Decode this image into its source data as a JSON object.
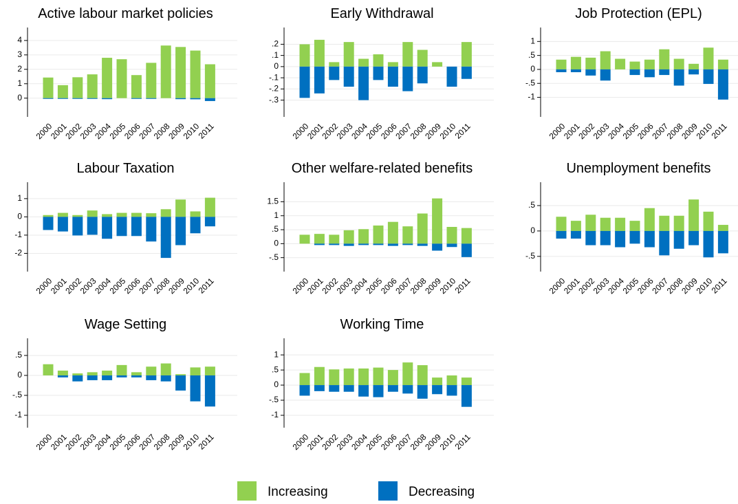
{
  "chart_data": [
    {
      "type": "bar",
      "title": "Active labour market policies",
      "categories": [
        "2000",
        "2001",
        "2002",
        "2003",
        "2004",
        "2005",
        "2006",
        "2007",
        "2008",
        "2009",
        "2010",
        "2011"
      ],
      "series": [
        {
          "name": "Increasing",
          "color": "#92d050",
          "values": [
            1.43,
            0.9,
            1.45,
            1.65,
            2.8,
            2.7,
            1.6,
            2.45,
            3.65,
            3.55,
            3.3,
            2.35
          ]
        },
        {
          "name": "Decreasing",
          "color": "#0070c0",
          "values": [
            -0.05,
            -0.05,
            -0.05,
            -0.05,
            -0.07,
            0,
            -0.05,
            -0.05,
            0,
            -0.07,
            -0.08,
            -0.2
          ]
        }
      ],
      "ylim": [
        -1.3,
        4.9
      ],
      "yticks": [
        0,
        1,
        2,
        3,
        4
      ],
      "grid": true
    },
    {
      "type": "bar",
      "title": "Early Withdrawal",
      "categories": [
        "2000",
        "2001",
        "2002",
        "2003",
        "2004",
        "2005",
        "2006",
        "2007",
        "2008",
        "2009",
        "2010",
        "2011"
      ],
      "series": [
        {
          "name": "Increasing",
          "color": "#92d050",
          "values": [
            0.2,
            0.24,
            0.04,
            0.22,
            0.07,
            0.11,
            0.04,
            0.22,
            0.15,
            0.04,
            0,
            0.22
          ]
        },
        {
          "name": "Decreasing",
          "color": "#0070c0",
          "values": [
            -0.28,
            -0.24,
            -0.12,
            -0.18,
            -0.3,
            -0.12,
            -0.18,
            -0.22,
            -0.15,
            0,
            -0.18,
            -0.11
          ]
        }
      ],
      "ylim": [
        -0.45,
        0.35
      ],
      "yticks": [
        {
          "value": 0.2,
          "label": ".2"
        },
        {
          "value": 0.1,
          "label": ".1"
        },
        0,
        {
          "value": -0.1,
          "label": "-.1"
        },
        {
          "value": -0.2,
          "label": "-.2"
        },
        {
          "value": -0.3,
          "label": "-.3"
        }
      ],
      "grid": true
    },
    {
      "type": "bar",
      "title": "Job Protection (EPL)",
      "categories": [
        "2000",
        "2001",
        "2002",
        "2003",
        "2004",
        "2005",
        "2006",
        "2007",
        "2008",
        "2009",
        "2010",
        "2011"
      ],
      "series": [
        {
          "name": "Increasing",
          "color": "#92d050",
          "values": [
            0.35,
            0.45,
            0.42,
            0.65,
            0.38,
            0.28,
            0.35,
            0.72,
            0.38,
            0.2,
            0.78,
            0.35
          ]
        },
        {
          "name": "Decreasing",
          "color": "#0070c0",
          "values": [
            -0.1,
            -0.1,
            -0.22,
            -0.4,
            0,
            -0.2,
            -0.28,
            -0.2,
            -0.58,
            -0.18,
            -0.52,
            -1.08
          ]
        }
      ],
      "ylim": [
        -1.7,
        1.5
      ],
      "yticks": [
        1,
        {
          "value": 0.5,
          "label": ".5"
        },
        0,
        {
          "value": -0.5,
          "label": "-.5"
        },
        -1
      ],
      "grid": true
    },
    {
      "type": "bar",
      "title": "Labour Taxation",
      "categories": [
        "2000",
        "2001",
        "2002",
        "2003",
        "2004",
        "2005",
        "2006",
        "2007",
        "2008",
        "2009",
        "2010",
        "2011"
      ],
      "series": [
        {
          "name": "Increasing",
          "color": "#92d050",
          "values": [
            0.1,
            0.22,
            0.1,
            0.35,
            0.15,
            0.22,
            0.22,
            0.2,
            0.42,
            0.95,
            0.3,
            1.05
          ]
        },
        {
          "name": "Decreasing",
          "color": "#0070c0",
          "values": [
            -0.72,
            -0.8,
            -1.02,
            -0.98,
            -1.2,
            -1.05,
            -1.05,
            -1.35,
            -2.25,
            -1.55,
            -0.9,
            -0.52
          ]
        }
      ],
      "ylim": [
        -3.0,
        1.9
      ],
      "yticks": [
        1,
        0,
        -1,
        -2
      ],
      "grid": true
    },
    {
      "type": "bar",
      "title": "Other welfare-related benefits",
      "categories": [
        "2000",
        "2001",
        "2002",
        "2003",
        "2004",
        "2005",
        "2006",
        "2007",
        "2008",
        "2009",
        "2010",
        "2011"
      ],
      "series": [
        {
          "name": "Increasing",
          "color": "#92d050",
          "values": [
            0.32,
            0.35,
            0.32,
            0.48,
            0.52,
            0.65,
            0.78,
            0.62,
            1.08,
            1.62,
            0.6,
            0.56
          ]
        },
        {
          "name": "Decreasing",
          "color": "#0070c0",
          "values": [
            0,
            -0.05,
            -0.05,
            -0.08,
            -0.05,
            -0.05,
            -0.08,
            -0.05,
            -0.08,
            -0.25,
            -0.12,
            -0.48
          ]
        }
      ],
      "ylim": [
        -1.0,
        2.2
      ],
      "yticks": [
        1.5,
        1,
        {
          "value": 0.5,
          "label": ".5"
        },
        0,
        {
          "value": -0.5,
          "label": "-.5"
        }
      ],
      "grid": true
    },
    {
      "type": "bar",
      "title": "Unemployment benefits",
      "categories": [
        "2000",
        "2001",
        "2002",
        "2003",
        "2004",
        "2005",
        "2006",
        "2007",
        "2008",
        "2009",
        "2010",
        "2011"
      ],
      "series": [
        {
          "name": "Increasing",
          "color": "#92d050",
          "values": [
            0.28,
            0.2,
            0.32,
            0.26,
            0.26,
            0.2,
            0.45,
            0.3,
            0.3,
            0.62,
            0.38,
            0.12
          ]
        },
        {
          "name": "Decreasing",
          "color": "#0070c0",
          "values": [
            -0.15,
            -0.15,
            -0.28,
            -0.28,
            -0.32,
            -0.25,
            -0.32,
            -0.48,
            -0.35,
            -0.28,
            -0.52,
            -0.44
          ]
        }
      ],
      "ylim": [
        -0.8,
        0.96
      ],
      "yticks": [
        {
          "value": 0.5,
          "label": ".5"
        },
        0,
        {
          "value": -0.5,
          "label": "-.5"
        }
      ],
      "grid": true
    },
    {
      "type": "bar",
      "title": "Wage Setting",
      "categories": [
        "2000",
        "2001",
        "2002",
        "2003",
        "2004",
        "2005",
        "2006",
        "2007",
        "2008",
        "2009",
        "2010",
        "2011"
      ],
      "series": [
        {
          "name": "Increasing",
          "color": "#92d050",
          "values": [
            0.28,
            0.12,
            0.05,
            0.08,
            0.12,
            0.26,
            0.08,
            0.22,
            0.3,
            0.03,
            0.2,
            0.22
          ]
        },
        {
          "name": "Decreasing",
          "color": "#0070c0",
          "values": [
            0,
            -0.05,
            -0.15,
            -0.12,
            -0.12,
            -0.05,
            -0.05,
            -0.12,
            -0.15,
            -0.38,
            -0.65,
            -0.78
          ]
        }
      ],
      "ylim": [
        -1.31,
        0.93
      ],
      "yticks": [
        {
          "value": 0.5,
          "label": ".5"
        },
        0,
        {
          "value": -0.5,
          "label": "-.5"
        },
        -1
      ],
      "grid": true
    },
    {
      "type": "bar",
      "title": "Working Time",
      "categories": [
        "2000",
        "2001",
        "2002",
        "2003",
        "2004",
        "2005",
        "2006",
        "2007",
        "2008",
        "2009",
        "2010",
        "2011"
      ],
      "series": [
        {
          "name": "Increasing",
          "color": "#92d050",
          "values": [
            0.4,
            0.6,
            0.52,
            0.55,
            0.55,
            0.58,
            0.5,
            0.75,
            0.66,
            0.25,
            0.32,
            0.25
          ]
        },
        {
          "name": "Decreasing",
          "color": "#0070c0",
          "values": [
            -0.35,
            -0.2,
            -0.22,
            -0.22,
            -0.38,
            -0.4,
            -0.22,
            -0.28,
            -0.45,
            -0.3,
            -0.35,
            -0.72
          ]
        }
      ],
      "ylim": [
        -1.41,
        1.55
      ],
      "yticks": [
        1,
        {
          "value": 0.5,
          "label": ".5"
        },
        0,
        {
          "value": -0.5,
          "label": "-.5"
        },
        -1
      ],
      "grid": true
    }
  ]
}
